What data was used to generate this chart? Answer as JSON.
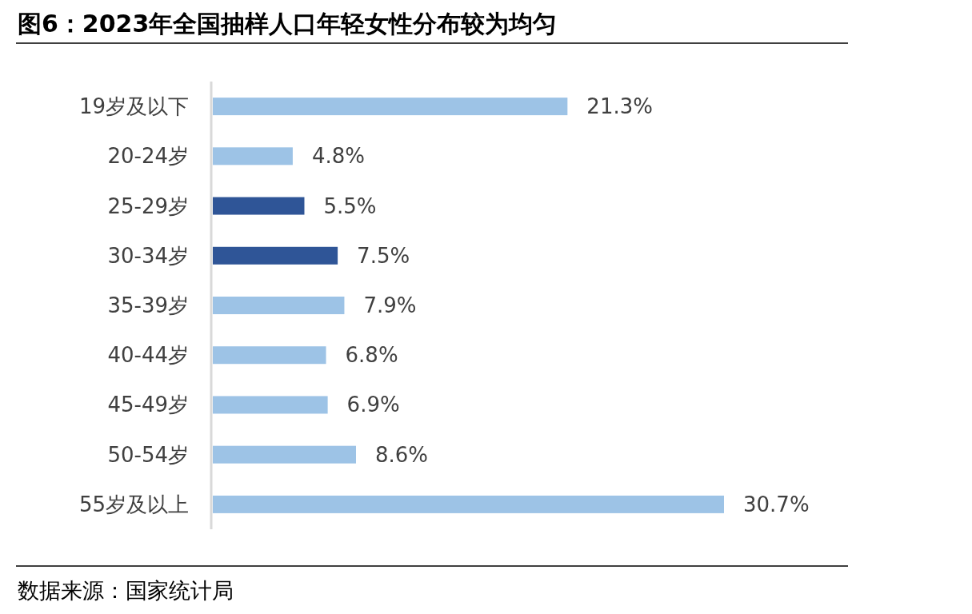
{
  "chart_data": {
    "type": "bar",
    "orientation": "horizontal",
    "title": "图6：2023年全国抽样人口年轻女性分布较为均匀",
    "categories": [
      "19岁及以下",
      "20-24岁",
      "25-29岁",
      "30-34岁",
      "35-39岁",
      "40-44岁",
      "45-49岁",
      "50-54岁",
      "55岁及以上"
    ],
    "values": [
      21.3,
      4.8,
      5.5,
      7.5,
      7.9,
      6.8,
      6.9,
      8.6,
      30.7
    ],
    "colors": [
      "#9dc3e6",
      "#9dc3e6",
      "#2f5597",
      "#2f5597",
      "#9dc3e6",
      "#9dc3e6",
      "#9dc3e6",
      "#9dc3e6",
      "#9dc3e6"
    ],
    "value_labels": [
      "21.3%",
      "4.8%",
      "5.5%",
      "7.5%",
      "7.9%",
      "6.8%",
      "6.9%",
      "8.6%",
      "30.7%"
    ],
    "annotations": [
      "数据来源：国家统计局"
    ]
  }
}
